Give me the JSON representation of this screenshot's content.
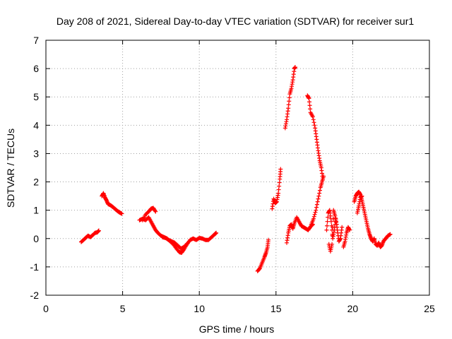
{
  "chart_data": {
    "type": "scatter",
    "title": "Day 208 of 2021, Sidereal Day-to-day VTEC variation (SDTVAR) for receiver sur1",
    "xlabel": "GPS time / hours",
    "ylabel": "SDTVAR / TECUs",
    "xlim": [
      0,
      25
    ],
    "ylim": [
      -2,
      7
    ],
    "xticks": [
      0,
      5,
      10,
      15,
      20,
      25
    ],
    "yticks": [
      -2,
      -1,
      0,
      1,
      2,
      3,
      4,
      5,
      6,
      7
    ],
    "grid": true,
    "marker": "+",
    "series_color": "#ff0000",
    "series": [
      {
        "name": "SDTVAR",
        "segments": [
          [
            [
              2.3,
              -0.12
            ],
            [
              2.45,
              -0.05
            ],
            [
              2.6,
              0.03
            ],
            [
              2.75,
              0.1
            ],
            [
              2.9,
              0.05
            ],
            [
              3.05,
              0.12
            ],
            [
              3.2,
              0.2
            ],
            [
              3.35,
              0.22
            ],
            [
              3.45,
              0.28
            ]
          ],
          [
            [
              3.65,
              1.5
            ],
            [
              3.75,
              1.6
            ],
            [
              3.85,
              1.45
            ],
            [
              3.95,
              1.35
            ],
            [
              4.05,
              1.22
            ],
            [
              4.2,
              1.18
            ],
            [
              4.35,
              1.12
            ],
            [
              4.5,
              1.05
            ],
            [
              4.65,
              0.98
            ],
            [
              4.8,
              0.92
            ],
            [
              4.95,
              0.88
            ]
          ],
          [
            [
              6.1,
              0.65
            ],
            [
              6.3,
              0.7
            ],
            [
              6.5,
              0.65
            ],
            [
              6.7,
              0.75
            ],
            [
              6.85,
              0.6
            ],
            [
              7.0,
              0.45
            ],
            [
              7.15,
              0.3
            ],
            [
              7.3,
              0.2
            ],
            [
              7.5,
              0.1
            ],
            [
              7.7,
              0.05
            ],
            [
              7.9,
              0.0
            ],
            [
              8.1,
              -0.1
            ],
            [
              8.3,
              -0.2
            ],
            [
              8.5,
              -0.35
            ],
            [
              8.7,
              -0.48
            ],
            [
              8.85,
              -0.5
            ],
            [
              9.0,
              -0.38
            ],
            [
              9.2,
              -0.2
            ],
            [
              9.4,
              -0.05
            ],
            [
              9.6,
              0.0
            ],
            [
              9.8,
              -0.05
            ],
            [
              10.0,
              0.02
            ],
            [
              10.2,
              0.0
            ],
            [
              10.4,
              -0.05
            ],
            [
              10.6,
              -0.05
            ],
            [
              10.8,
              0.05
            ],
            [
              11.0,
              0.15
            ],
            [
              11.1,
              0.2
            ]
          ],
          [
            [
              6.3,
              0.65
            ],
            [
              6.5,
              0.85
            ],
            [
              6.7,
              0.95
            ],
            [
              6.85,
              1.05
            ],
            [
              7.0,
              1.08
            ],
            [
              7.15,
              0.95
            ]
          ],
          [
            [
              7.6,
              0.05
            ],
            [
              7.8,
              0.02
            ],
            [
              8.0,
              -0.05
            ],
            [
              8.2,
              -0.1
            ],
            [
              8.4,
              -0.15
            ],
            [
              8.6,
              -0.25
            ],
            [
              8.8,
              -0.35
            ],
            [
              9.0,
              -0.3
            ],
            [
              9.2,
              -0.18
            ]
          ],
          [
            [
              13.8,
              -1.15
            ],
            [
              13.95,
              -1.05
            ],
            [
              14.1,
              -0.85
            ],
            [
              14.25,
              -0.65
            ],
            [
              14.35,
              -0.5
            ],
            [
              14.45,
              -0.3
            ],
            [
              14.5,
              -0.05
            ]
          ],
          [
            [
              14.75,
              1.05
            ],
            [
              14.85,
              1.4
            ],
            [
              14.95,
              1.25
            ],
            [
              15.05,
              1.3
            ],
            [
              15.15,
              1.6
            ],
            [
              15.25,
              2.1
            ],
            [
              15.3,
              2.45
            ]
          ],
          [
            [
              15.6,
              3.9
            ],
            [
              15.7,
              4.2
            ],
            [
              15.8,
              4.6
            ],
            [
              15.9,
              5.1
            ],
            [
              16.0,
              5.3
            ],
            [
              16.1,
              5.6
            ],
            [
              16.2,
              6.0
            ],
            [
              16.25,
              6.05
            ]
          ],
          [
            [
              15.7,
              -0.15
            ],
            [
              15.8,
              0.2
            ],
            [
              15.9,
              0.45
            ],
            [
              16.0,
              0.5
            ],
            [
              16.1,
              0.35
            ],
            [
              16.2,
              0.55
            ],
            [
              16.35,
              0.75
            ],
            [
              16.5,
              0.6
            ],
            [
              16.65,
              0.45
            ],
            [
              16.8,
              0.4
            ],
            [
              16.95,
              0.35
            ],
            [
              17.1,
              0.3
            ],
            [
              17.25,
              0.42
            ],
            [
              17.4,
              0.5
            ]
          ],
          [
            [
              17.05,
              5.05
            ],
            [
              17.15,
              4.95
            ],
            [
              17.25,
              4.45
            ],
            [
              17.4,
              4.3
            ],
            [
              17.55,
              3.9
            ],
            [
              17.65,
              3.5
            ],
            [
              17.75,
              3.1
            ],
            [
              17.85,
              2.75
            ],
            [
              17.95,
              2.5
            ],
            [
              18.05,
              2.1
            ]
          ],
          [
            [
              17.3,
              0.5
            ],
            [
              17.45,
              0.7
            ],
            [
              17.6,
              1.0
            ],
            [
              17.75,
              1.4
            ],
            [
              17.9,
              1.8
            ],
            [
              18.0,
              2.0
            ],
            [
              18.1,
              2.2
            ]
          ],
          [
            [
              18.3,
              0.3
            ],
            [
              18.4,
              0.9
            ],
            [
              18.5,
              1.0
            ],
            [
              18.6,
              0.6
            ],
            [
              18.7,
              0.0
            ],
            [
              18.8,
              0.3
            ],
            [
              18.9,
              0.7
            ],
            [
              19.0,
              0.3
            ],
            [
              19.1,
              -0.1
            ],
            [
              19.2,
              0.0
            ],
            [
              19.3,
              0.4
            ]
          ],
          [
            [
              18.45,
              -0.2
            ],
            [
              18.55,
              -0.45
            ],
            [
              18.65,
              -0.2
            ],
            [
              18.75,
              1.0
            ],
            [
              18.85,
              0.8
            ],
            [
              18.95,
              0.5
            ]
          ],
          [
            [
              19.4,
              -0.3
            ],
            [
              19.5,
              -0.1
            ],
            [
              19.6,
              0.2
            ],
            [
              19.7,
              0.4
            ],
            [
              19.8,
              0.3
            ]
          ],
          [
            [
              20.1,
              1.3
            ],
            [
              20.2,
              1.5
            ],
            [
              20.3,
              1.6
            ],
            [
              20.4,
              1.65
            ],
            [
              20.5,
              1.55
            ],
            [
              20.6,
              1.35
            ],
            [
              20.7,
              1.1
            ],
            [
              20.8,
              0.85
            ],
            [
              20.9,
              0.6
            ],
            [
              21.0,
              0.35
            ],
            [
              21.1,
              0.15
            ],
            [
              21.2,
              0.0
            ],
            [
              21.3,
              -0.1
            ],
            [
              21.4,
              0.0
            ],
            [
              21.5,
              -0.2
            ],
            [
              21.6,
              -0.25
            ],
            [
              21.7,
              -0.15
            ],
            [
              21.8,
              -0.3
            ],
            [
              21.9,
              -0.25
            ],
            [
              22.0,
              -0.1
            ],
            [
              22.15,
              0.0
            ],
            [
              22.3,
              0.1
            ],
            [
              22.45,
              0.15
            ]
          ],
          [
            [
              20.3,
              0.9
            ],
            [
              20.4,
              1.15
            ],
            [
              20.5,
              1.45
            ],
            [
              20.6,
              1.5
            ]
          ]
        ]
      }
    ]
  }
}
